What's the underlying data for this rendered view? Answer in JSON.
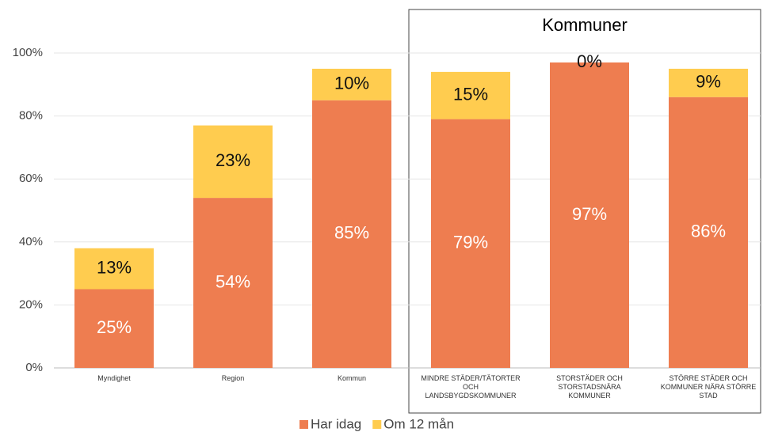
{
  "chart_data": {
    "type": "stacked_bar",
    "categories": [
      "Myndighet",
      "Region",
      "Kommun",
      "MINDRE STÄDER/TÄTORTER OCH LANDSBYGDSKOMMUNER",
      "STORSTÄDER OCH STORSTADSNÄRA KOMMUNER",
      "STÖRRE STÄDER OCH KOMMUNER NÄRA STÖRRE STAD"
    ],
    "series": [
      {
        "name": "Har idag",
        "color": "#ee7d50",
        "values": [
          25,
          54,
          85,
          79,
          97,
          86
        ],
        "value_labels": [
          "25%",
          "54%",
          "85%",
          "79%",
          "97%",
          "86%"
        ]
      },
      {
        "name": "Om 12 mån",
        "color": "#ffcc4f",
        "values": [
          13,
          23,
          10,
          15,
          0,
          9
        ],
        "value_labels": [
          "13%",
          "23%",
          "10%",
          "15%",
          "0%",
          "9%"
        ]
      }
    ],
    "ylim": [
      0,
      100
    ],
    "yticks": [
      {
        "value": 0,
        "label": "0%"
      },
      {
        "value": 20,
        "label": "20%"
      },
      {
        "value": 40,
        "label": "40%"
      },
      {
        "value": 60,
        "label": "60%"
      },
      {
        "value": 80,
        "label": "80%"
      },
      {
        "value": 100,
        "label": "100%"
      }
    ],
    "grid": true,
    "legend": "bottom",
    "annotation": "Kommuner"
  }
}
